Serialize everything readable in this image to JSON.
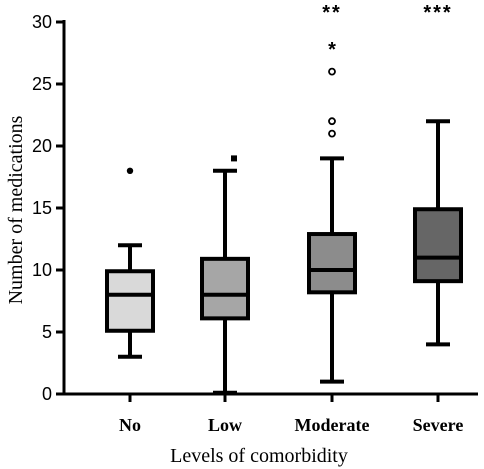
{
  "chart_data": {
    "type": "boxplot",
    "xlabel": "Levels of comorbidity",
    "ylabel": "Number of medications",
    "ylim": [
      0,
      30
    ],
    "yticks": [
      0,
      5,
      10,
      15,
      20,
      25,
      30
    ],
    "categories": [
      "No",
      "Low",
      "Moderate",
      "Severe"
    ],
    "boxes": [
      {
        "category": "No",
        "whisker_low": 3,
        "q1": 5.1,
        "median": 8,
        "q3": 9.9,
        "whisker_high": 12,
        "fill": "#d9d9d9",
        "outliers": [
          {
            "value": 18,
            "marker": "dot"
          }
        ],
        "significance": ""
      },
      {
        "category": "Low",
        "whisker_low": 0.1,
        "q1": 6.1,
        "median": 8,
        "q3": 10.9,
        "whisker_high": 18,
        "fill": "#a6a6a6",
        "outliers": [
          {
            "value": 19,
            "marker": "square"
          }
        ],
        "significance": ""
      },
      {
        "category": "Moderate",
        "whisker_low": 1,
        "q1": 8.2,
        "median": 10,
        "q3": 12.9,
        "whisker_high": 19,
        "fill": "#8c8c8c",
        "outliers": [
          {
            "value": 21,
            "marker": "circle"
          },
          {
            "value": 22,
            "marker": "circle"
          },
          {
            "value": 26,
            "marker": "circle"
          },
          {
            "value": 28,
            "marker": "star"
          }
        ],
        "significance": "**"
      },
      {
        "category": "Severe",
        "whisker_low": 4,
        "q1": 9.1,
        "median": 11,
        "q3": 14.9,
        "whisker_high": 22,
        "fill": "#666666",
        "outliers": [],
        "significance": "***"
      }
    ]
  }
}
